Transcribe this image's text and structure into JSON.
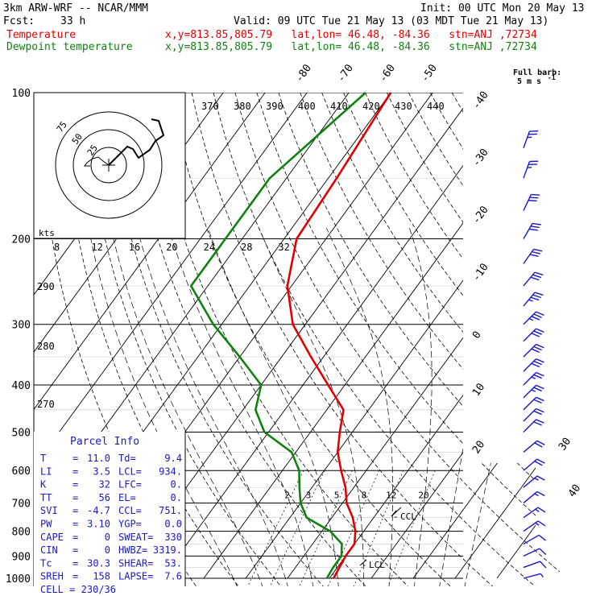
{
  "header": {
    "model": "3km ARW-WRF -- NCAR/MMM",
    "init": "Init: 00 UTC Mon 20 May 13",
    "fcst_label": "Fcst:",
    "fcst_value": "33 h",
    "valid": "Valid: 09 UTC Tue 21 May 13 (03 MDT Tue 21 May 13)",
    "temp_legend": "Temperature",
    "temp_info": "x,y=813.85,805.79   lat,lon= 46.48, -84.36   stn=ANJ ,72734",
    "dew_legend": "Dewpoint temperature",
    "dew_info": "x,y=813.85,805.79   lat,lon= 46.48, -84.36   stn=ANJ ,72734",
    "barb_label_1": "Full barb:",
    "barb_label_2": "5 m s",
    "barb_label_sup": "-1"
  },
  "colors": {
    "temperature": "#e00000",
    "dewpoint": "#108010",
    "barb": "#1818c8",
    "grid": "#000000"
  },
  "chart_data": {
    "type": "line",
    "pressure_levels": [
      100,
      200,
      300,
      400,
      500,
      600,
      700,
      800,
      900,
      1000
    ],
    "isotherm_labels": [
      -80,
      -70,
      -60,
      -50,
      -40,
      -30,
      -20,
      -10,
      0,
      10,
      20,
      30,
      40
    ],
    "theta_labels": [
      370,
      380,
      390,
      400,
      410,
      420,
      430,
      440
    ],
    "theta_low_labels": [
      290,
      280,
      270
    ],
    "mixing_ratio_labels": [
      2,
      3,
      5,
      8,
      12,
      20
    ],
    "hodograph": {
      "units": "kts",
      "ring_labels": [
        75,
        50,
        25
      ],
      "speed_ticks": [
        8,
        12,
        16,
        20,
        24,
        28,
        32
      ]
    },
    "series": [
      {
        "name": "Temperature",
        "color": "#e00000",
        "points": [
          [
            100,
            -60
          ],
          [
            150,
            -58
          ],
          [
            200,
            -57
          ],
          [
            250,
            -51
          ],
          [
            300,
            -43
          ],
          [
            350,
            -33
          ],
          [
            400,
            -24
          ],
          [
            450,
            -16
          ],
          [
            500,
            -13
          ],
          [
            550,
            -10
          ],
          [
            600,
            -6
          ],
          [
            650,
            -2
          ],
          [
            700,
            1
          ],
          [
            750,
            5
          ],
          [
            800,
            8
          ],
          [
            850,
            10
          ],
          [
            900,
            10
          ],
          [
            950,
            10.5
          ],
          [
            1000,
            11
          ]
        ]
      },
      {
        "name": "Dewpoint temperature",
        "color": "#108010",
        "points": [
          [
            100,
            -66
          ],
          [
            150,
            -74
          ],
          [
            200,
            -74
          ],
          [
            250,
            -74
          ],
          [
            300,
            -62
          ],
          [
            350,
            -50
          ],
          [
            400,
            -40
          ],
          [
            450,
            -37
          ],
          [
            500,
            -31
          ],
          [
            550,
            -21
          ],
          [
            600,
            -16
          ],
          [
            650,
            -13
          ],
          [
            700,
            -10
          ],
          [
            750,
            -6
          ],
          [
            800,
            2
          ],
          [
            850,
            7
          ],
          [
            900,
            9
          ],
          [
            950,
            9
          ],
          [
            1000,
            9.4
          ]
        ]
      }
    ],
    "annotations": [
      "CCL",
      "LCL"
    ]
  },
  "parcel_info": {
    "title": "Parcel Info",
    "rows": [
      [
        {
          "k": "T",
          "v": "11.0"
        },
        {
          "k": "Td",
          "v": "9.4"
        }
      ],
      [
        {
          "k": "LI",
          "v": "3.5"
        },
        {
          "k": "LCL",
          "v": "934."
        }
      ],
      [
        {
          "k": "K",
          "v": "32"
        },
        {
          "k": "LFC",
          "v": "0."
        }
      ],
      [
        {
          "k": "TT",
          "v": "56"
        },
        {
          "k": "EL",
          "v": "0."
        }
      ],
      [
        {
          "k": "SVI",
          "v": "-4.7"
        },
        {
          "k": "CCL",
          "v": "751."
        }
      ],
      [
        {
          "k": "PW",
          "v": "3.10"
        },
        {
          "k": "YGP",
          "v": "0.0"
        }
      ],
      [
        {
          "k": "CAPE",
          "v": "0"
        },
        {
          "k": "SWEAT",
          "v": "330"
        }
      ],
      [
        {
          "k": "CIN",
          "v": "0"
        },
        {
          "k": "HWBZ",
          "v": "3319."
        }
      ],
      [
        {
          "k": "Tc",
          "v": "30.3"
        },
        {
          "k": "SHEAR",
          "v": "53."
        }
      ],
      [
        {
          "k": "SREH",
          "v": "158"
        },
        {
          "k": "LAPSE",
          "v": "7.6"
        }
      ]
    ],
    "cell_label": "CELL",
    "cell_value": "230/36"
  },
  "wind_barbs": [
    {
      "p": 130,
      "dir": 200,
      "spd": 13
    },
    {
      "p": 150,
      "dir": 200,
      "spd": 13
    },
    {
      "p": 175,
      "dir": 205,
      "spd": 15
    },
    {
      "p": 200,
      "dir": 210,
      "spd": 15
    },
    {
      "p": 225,
      "dir": 215,
      "spd": 17
    },
    {
      "p": 250,
      "dir": 220,
      "spd": 17
    },
    {
      "p": 275,
      "dir": 220,
      "spd": 18
    },
    {
      "p": 300,
      "dir": 225,
      "spd": 18
    },
    {
      "p": 325,
      "dir": 225,
      "spd": 17
    },
    {
      "p": 350,
      "dir": 225,
      "spd": 16
    },
    {
      "p": 375,
      "dir": 225,
      "spd": 15
    },
    {
      "p": 400,
      "dir": 225,
      "spd": 14
    },
    {
      "p": 425,
      "dir": 225,
      "spd": 13
    },
    {
      "p": 450,
      "dir": 225,
      "spd": 12
    },
    {
      "p": 475,
      "dir": 225,
      "spd": 12
    },
    {
      "p": 500,
      "dir": 225,
      "spd": 11
    },
    {
      "p": 550,
      "dir": 230,
      "spd": 10
    },
    {
      "p": 600,
      "dir": 230,
      "spd": 10
    },
    {
      "p": 650,
      "dir": 230,
      "spd": 9
    },
    {
      "p": 700,
      "dir": 230,
      "spd": 9
    },
    {
      "p": 750,
      "dir": 235,
      "spd": 8
    },
    {
      "p": 800,
      "dir": 235,
      "spd": 8
    },
    {
      "p": 850,
      "dir": 240,
      "spd": 7
    },
    {
      "p": 900,
      "dir": 245,
      "spd": 6
    },
    {
      "p": 950,
      "dir": 250,
      "spd": 5
    },
    {
      "p": 1000,
      "dir": 255,
      "spd": 4
    }
  ]
}
